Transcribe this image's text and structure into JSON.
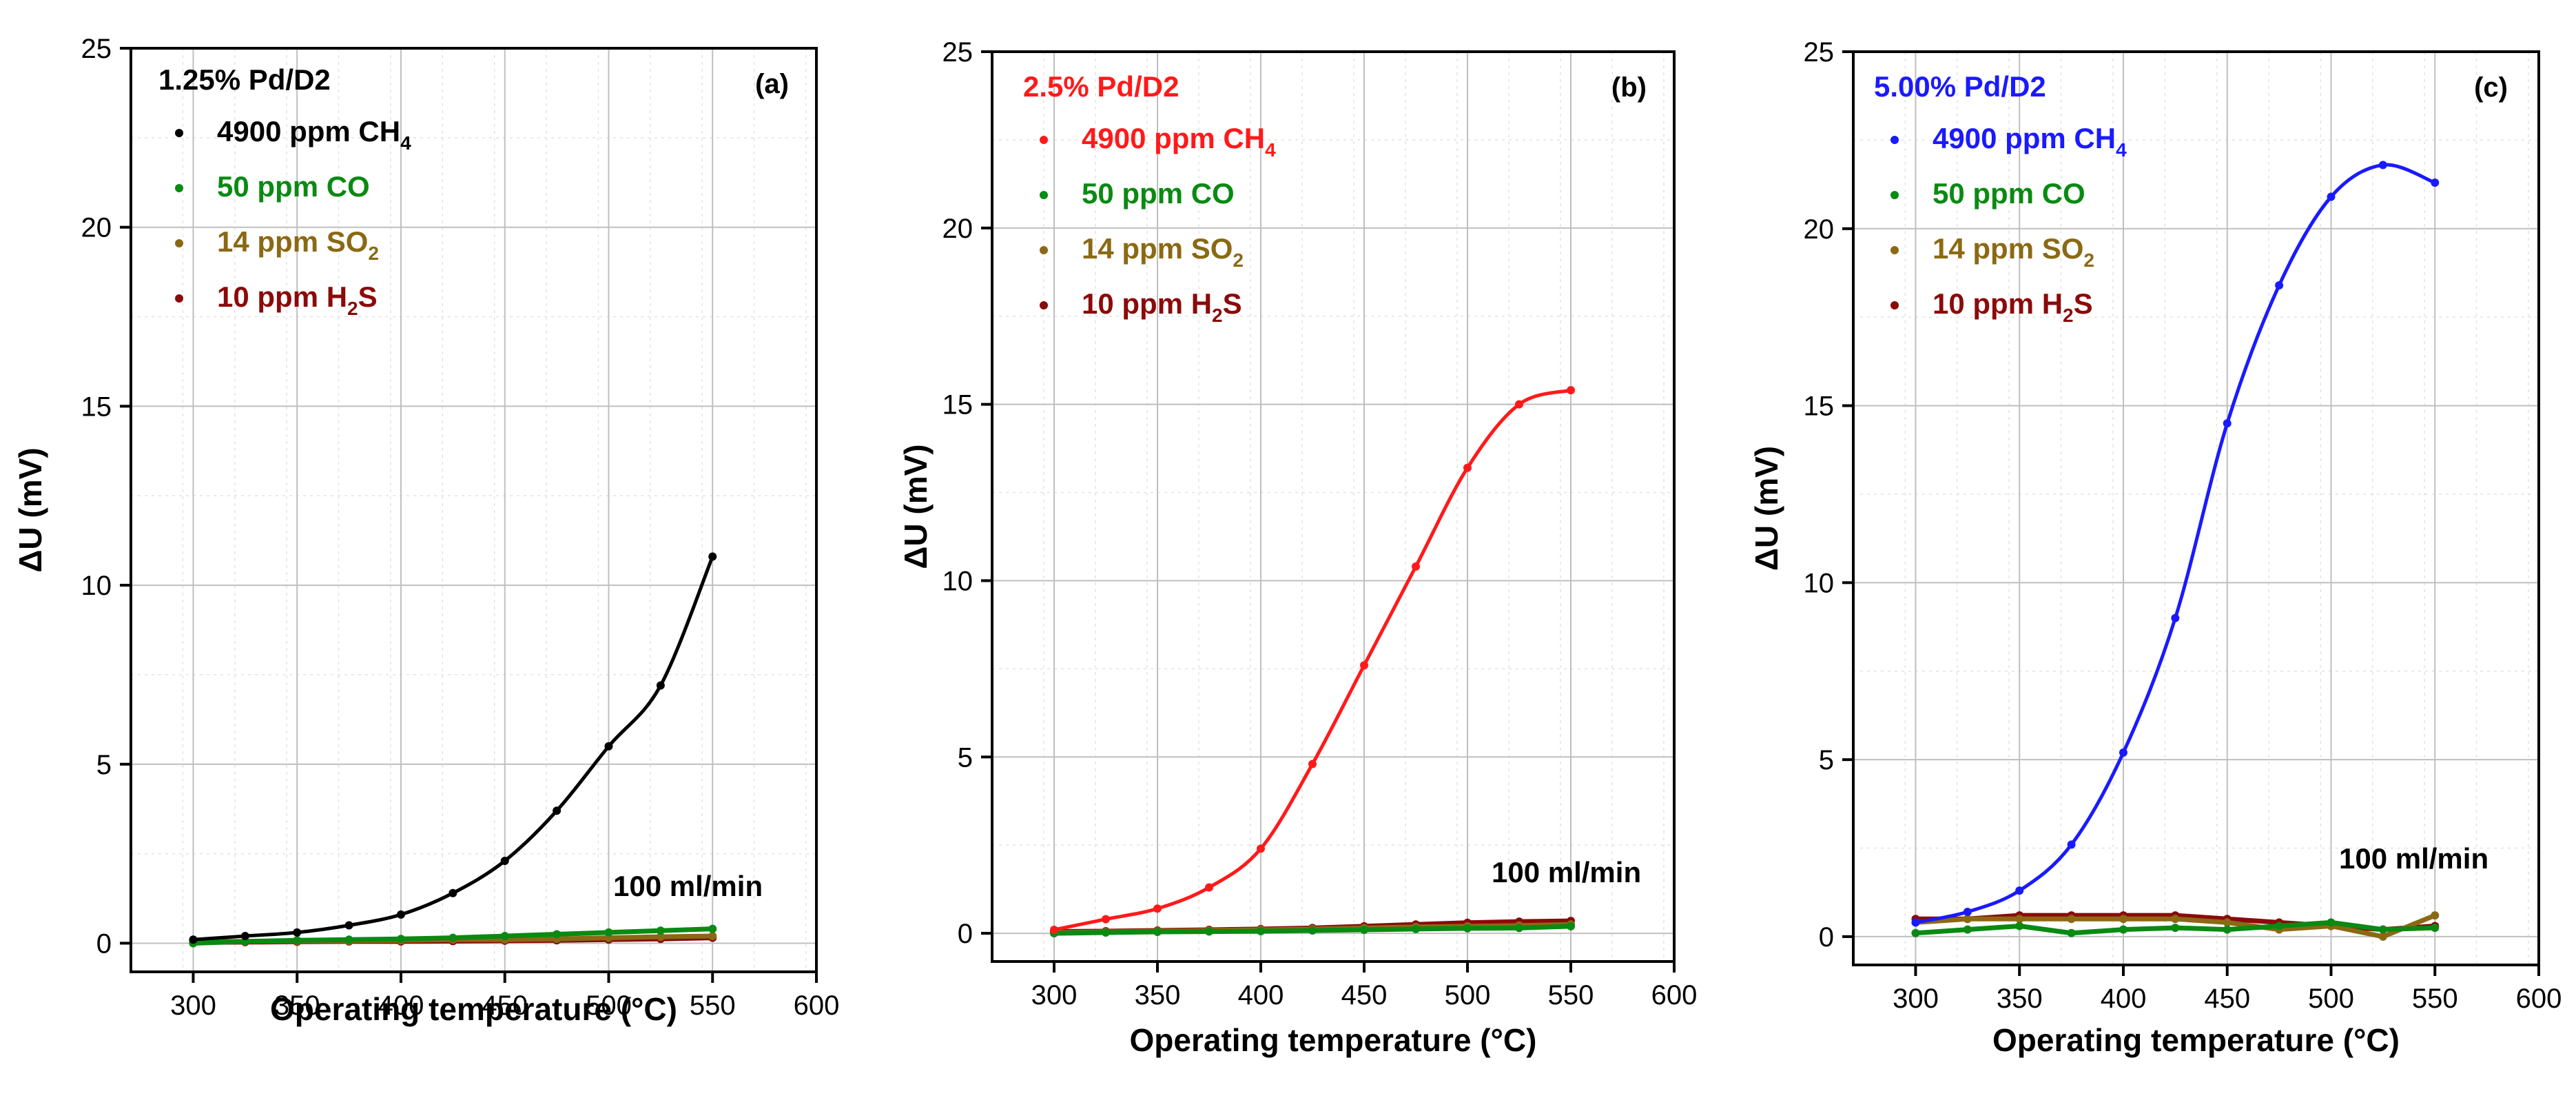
{
  "figure": {
    "x_unit_label": "Operating temperature (°C)"
  },
  "chart_data": [
    {
      "panel_label": "(a)",
      "type": "line",
      "sample_label": "1.25% Pd/D2",
      "sample_color": "#000000",
      "flow_annotation": "100 ml/min",
      "xlabel": "Operating temperature (°C)",
      "ylabel": "ΔU (mV)",
      "xlim": [
        270,
        600
      ],
      "ylim": [
        -0.8,
        25
      ],
      "x_ticks": [
        300,
        350,
        400,
        450,
        500,
        550,
        600
      ],
      "y_ticks": [
        0,
        5,
        10,
        15,
        20,
        25
      ],
      "grid": true,
      "legend_position": "top-left",
      "series": [
        {
          "name": "4900 ppm CH",
          "sub": "4",
          "color": "#000000",
          "smooth": true,
          "x": [
            300,
            325,
            350,
            375,
            400,
            425,
            450,
            475,
            500,
            525,
            550
          ],
          "y": [
            0.1,
            0.2,
            0.3,
            0.5,
            0.8,
            1.4,
            2.3,
            3.7,
            5.5,
            7.2,
            10.8
          ]
        },
        {
          "name": "50 ppm CO",
          "sub": "",
          "color": "#0a8a12",
          "smooth": false,
          "x": [
            300,
            325,
            350,
            375,
            400,
            425,
            450,
            475,
            500,
            525,
            550
          ],
          "y": [
            0.0,
            0.05,
            0.08,
            0.1,
            0.12,
            0.15,
            0.2,
            0.25,
            0.3,
            0.35,
            0.4
          ]
        },
        {
          "name": "14 ppm SO",
          "sub": "2",
          "color": "#8b6914",
          "smooth": false,
          "x": [
            300,
            325,
            350,
            375,
            400,
            425,
            450,
            475,
            500,
            525,
            550
          ],
          "y": [
            0.05,
            0.05,
            0.06,
            0.07,
            0.08,
            0.1,
            0.1,
            0.12,
            0.15,
            0.18,
            0.2
          ]
        },
        {
          "name": "10 ppm H",
          "sub": "2",
          "after": "S",
          "color": "#8b0a0a",
          "smooth": false,
          "x": [
            300,
            325,
            350,
            375,
            400,
            425,
            450,
            475,
            500,
            525,
            550
          ],
          "y": [
            0.02,
            0.03,
            0.04,
            0.05,
            0.05,
            0.06,
            0.07,
            0.08,
            0.1,
            0.12,
            0.15
          ]
        }
      ]
    },
    {
      "panel_label": "(b)",
      "type": "line",
      "sample_label": "2.5% Pd/D2",
      "sample_color": "#ff1a1a",
      "flow_annotation": "100 ml/min",
      "xlabel": "Operating temperature (°C)",
      "ylabel": "ΔU (mV)",
      "xlim": [
        270,
        600
      ],
      "ylim": [
        -0.8,
        25
      ],
      "x_ticks": [
        300,
        350,
        400,
        450,
        500,
        550,
        600
      ],
      "y_ticks": [
        0,
        5,
        10,
        15,
        20,
        25
      ],
      "grid": true,
      "legend_position": "top-left",
      "series": [
        {
          "name": "4900 ppm CH",
          "sub": "4",
          "color": "#ff1a1a",
          "smooth": true,
          "x": [
            300,
            325,
            350,
            375,
            400,
            425,
            450,
            475,
            500,
            525,
            550
          ],
          "y": [
            0.1,
            0.4,
            0.7,
            1.3,
            2.4,
            4.8,
            7.6,
            10.4,
            13.2,
            15.0,
            15.4
          ]
        },
        {
          "name": "50 ppm CO",
          "sub": "",
          "color": "#0a8a12",
          "smooth": false,
          "x": [
            300,
            325,
            350,
            375,
            400,
            425,
            450,
            475,
            500,
            525,
            550
          ],
          "y": [
            0.0,
            0.02,
            0.04,
            0.05,
            0.06,
            0.08,
            0.1,
            0.12,
            0.14,
            0.15,
            0.2
          ]
        },
        {
          "name": "14 ppm SO",
          "sub": "2",
          "color": "#8b6914",
          "smooth": false,
          "x": [
            300,
            325,
            350,
            375,
            400,
            425,
            450,
            475,
            500,
            525,
            550
          ],
          "y": [
            0.02,
            0.04,
            0.06,
            0.08,
            0.1,
            0.12,
            0.15,
            0.18,
            0.2,
            0.22,
            0.25
          ]
        },
        {
          "name": "10 ppm H",
          "sub": "2",
          "after": "S",
          "color": "#8b0a0a",
          "smooth": false,
          "x": [
            300,
            325,
            350,
            375,
            400,
            425,
            450,
            475,
            500,
            525,
            550
          ],
          "y": [
            0.05,
            0.06,
            0.08,
            0.1,
            0.12,
            0.15,
            0.2,
            0.25,
            0.3,
            0.33,
            0.35
          ]
        }
      ]
    },
    {
      "panel_label": "(c)",
      "type": "line",
      "sample_label": "5.00% Pd/D2",
      "sample_color": "#1a1aff",
      "flow_annotation": "100 ml/min",
      "xlabel": "Operating temperature (°C)",
      "ylabel": "ΔU (mV)",
      "xlim": [
        270,
        600
      ],
      "ylim": [
        -0.8,
        25
      ],
      "x_ticks": [
        300,
        350,
        400,
        450,
        500,
        550,
        600
      ],
      "y_ticks": [
        0,
        5,
        10,
        15,
        20,
        25
      ],
      "grid": true,
      "legend_position": "top-left",
      "series": [
        {
          "name": "4900 ppm CH",
          "sub": "4",
          "color": "#1a1aff",
          "smooth": true,
          "x": [
            300,
            325,
            350,
            375,
            400,
            425,
            450,
            475,
            500,
            525,
            550
          ],
          "y": [
            0.4,
            0.7,
            1.3,
            2.6,
            5.2,
            9.0,
            14.5,
            18.4,
            20.9,
            21.8,
            21.3
          ]
        },
        {
          "name": "50 ppm CO",
          "sub": "",
          "color": "#0a8a12",
          "smooth": false,
          "x": [
            300,
            325,
            350,
            375,
            400,
            425,
            450,
            475,
            500,
            525,
            550
          ],
          "y": [
            0.1,
            0.2,
            0.3,
            0.1,
            0.2,
            0.25,
            0.2,
            0.3,
            0.4,
            0.2,
            0.25
          ]
        },
        {
          "name": "14 ppm SO",
          "sub": "2",
          "color": "#8b6914",
          "smooth": false,
          "x": [
            300,
            325,
            350,
            375,
            400,
            425,
            450,
            475,
            500,
            525,
            550
          ],
          "y": [
            0.4,
            0.5,
            0.5,
            0.5,
            0.5,
            0.5,
            0.4,
            0.2,
            0.3,
            0.0,
            0.6
          ]
        },
        {
          "name": "10 ppm H",
          "sub": "2",
          "after": "S",
          "color": "#8b0a0a",
          "smooth": false,
          "x": [
            300,
            325,
            350,
            375,
            400,
            425,
            450,
            475,
            500,
            525,
            550
          ],
          "y": [
            0.5,
            0.5,
            0.6,
            0.6,
            0.6,
            0.6,
            0.5,
            0.4,
            0.3,
            0.2,
            0.3
          ]
        }
      ]
    }
  ]
}
